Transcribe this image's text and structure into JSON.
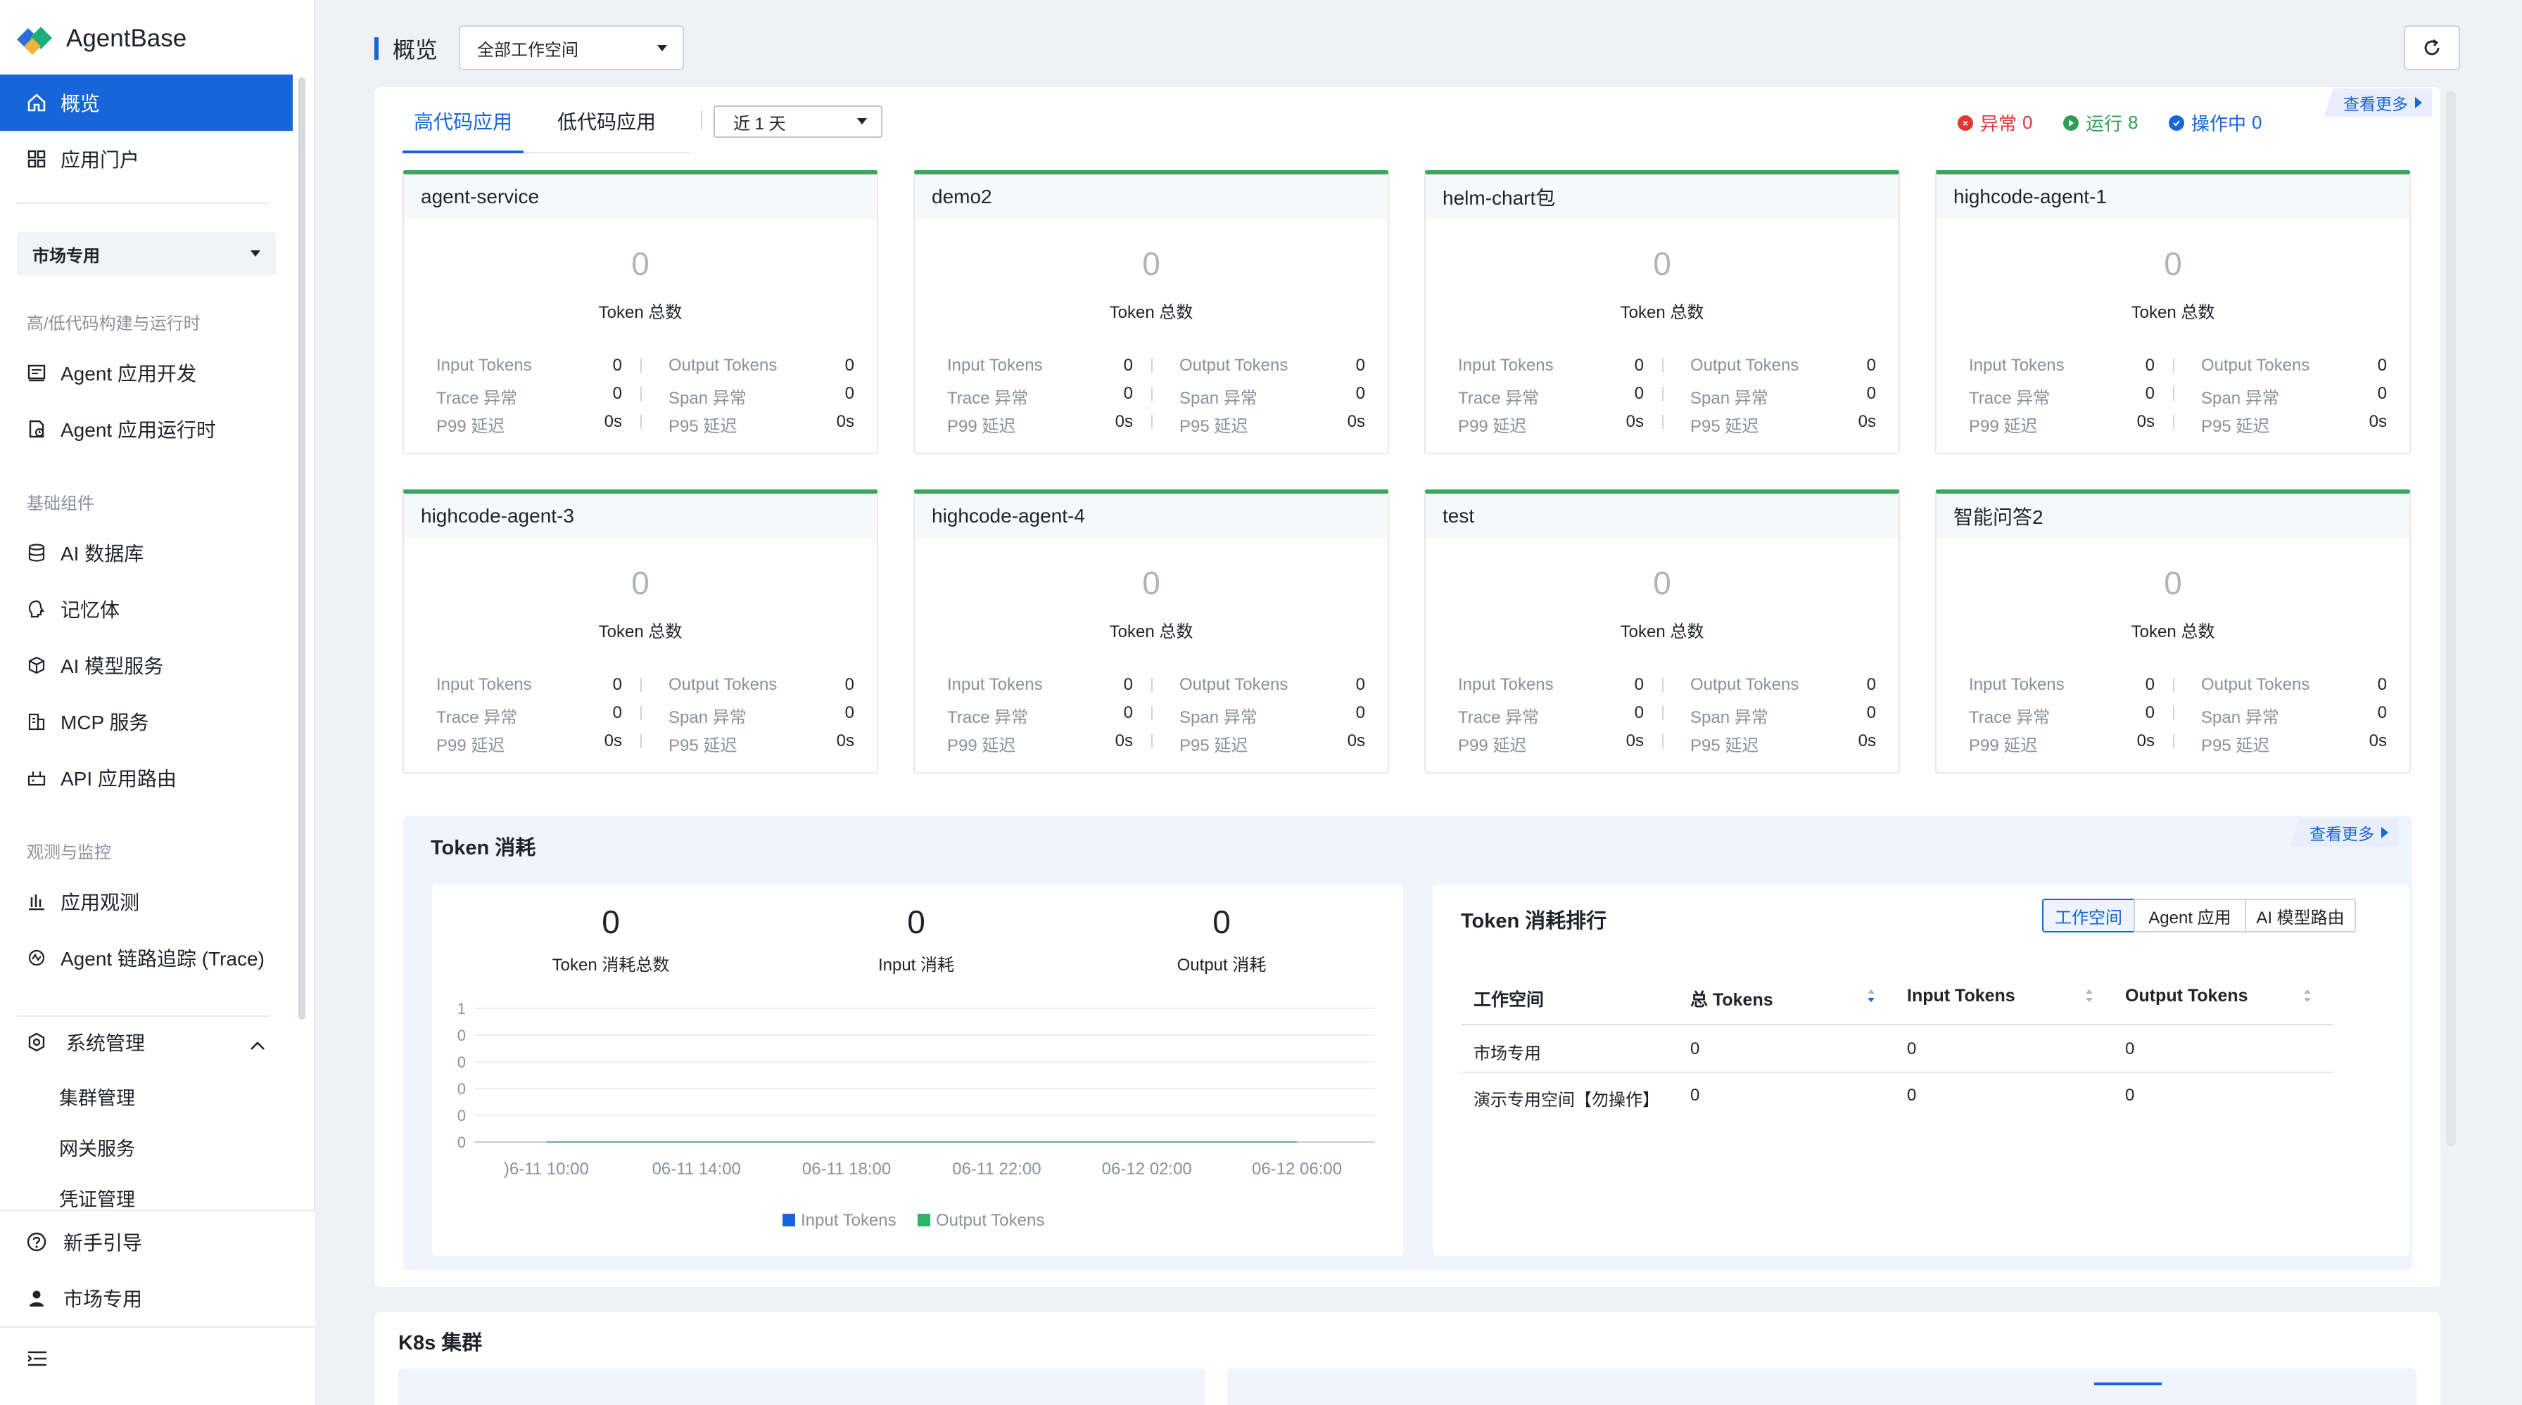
{
  "app": {
    "name": "AgentBase"
  },
  "sidebar": {
    "nav_top": [
      {
        "label": "概览",
        "icon": "home-icon"
      },
      {
        "label": "应用门户",
        "icon": "grid-icon"
      }
    ],
    "workspace_select": "市场专用",
    "section_build": "高/低代码构建与运行时",
    "nav_build": [
      {
        "label": "Agent 应用开发",
        "icon": "code-window-icon"
      },
      {
        "label": "Agent 应用运行时",
        "icon": "runtime-icon"
      }
    ],
    "section_base": "基础组件",
    "nav_base": [
      {
        "label": "AI 数据库",
        "icon": "database-icon"
      },
      {
        "label": "记忆体",
        "icon": "memory-icon"
      },
      {
        "label": "AI 模型服务",
        "icon": "cube-icon"
      },
      {
        "label": "MCP 服务",
        "icon": "building-icon"
      },
      {
        "label": "API 应用路由",
        "icon": "router-icon"
      }
    ],
    "section_observe": "观测与监控",
    "nav_observe": [
      {
        "label": "应用观测",
        "icon": "bar-chart-icon"
      },
      {
        "label": "Agent 链路追踪 (Trace)",
        "icon": "trace-icon"
      }
    ],
    "system": {
      "label": "系统管理",
      "icon": "settings-icon",
      "children": [
        "集群管理",
        "网关服务",
        "凭证管理"
      ]
    },
    "guide": {
      "label": "新手引导",
      "icon": "help-icon"
    },
    "user": {
      "label": "市场专用",
      "icon": "user-icon"
    }
  },
  "header": {
    "title": "概览",
    "workspace": "全部工作空间"
  },
  "tabs": [
    "高代码应用",
    "低代码应用"
  ],
  "range": "近 1 天",
  "status": {
    "error": {
      "label": "异常",
      "count": "0",
      "color": "#e03636"
    },
    "running": {
      "label": "运行",
      "count": "8",
      "color": "#2f9e55"
    },
    "operating": {
      "label": "操作中",
      "count": "0",
      "color": "#1765d8"
    }
  },
  "view_more": "查看更多",
  "card_labels": {
    "token_total": "Token 总数",
    "input_tokens": "Input Tokens",
    "output_tokens": "Output Tokens",
    "trace_error": "Trace 异常",
    "span_error": "Span 异常",
    "p99": "P99 延迟",
    "p95": "P95 延迟"
  },
  "apps": [
    {
      "name": "agent-service",
      "total": "0",
      "input": "0",
      "output": "0",
      "trace": "0",
      "span": "0",
      "p99": "0s",
      "p95": "0s"
    },
    {
      "name": "demo2",
      "total": "0",
      "input": "0",
      "output": "0",
      "trace": "0",
      "span": "0",
      "p99": "0s",
      "p95": "0s"
    },
    {
      "name": "helm-chart包",
      "total": "0",
      "input": "0",
      "output": "0",
      "trace": "0",
      "span": "0",
      "p99": "0s",
      "p95": "0s"
    },
    {
      "name": "highcode-agent-1",
      "total": "0",
      "input": "0",
      "output": "0",
      "trace": "0",
      "span": "0",
      "p99": "0s",
      "p95": "0s"
    },
    {
      "name": "highcode-agent-3",
      "total": "0",
      "input": "0",
      "output": "0",
      "trace": "0",
      "span": "0",
      "p99": "0s",
      "p95": "0s"
    },
    {
      "name": "highcode-agent-4",
      "total": "0",
      "input": "0",
      "output": "0",
      "trace": "0",
      "span": "0",
      "p99": "0s",
      "p95": "0s"
    },
    {
      "name": "test",
      "total": "0",
      "input": "0",
      "output": "0",
      "trace": "0",
      "span": "0",
      "p99": "0s",
      "p95": "0s"
    },
    {
      "name": "智能问答2",
      "total": "0",
      "input": "0",
      "output": "0",
      "trace": "0",
      "span": "0",
      "p99": "0s",
      "p95": "0s"
    }
  ],
  "token": {
    "title": "Token 消耗",
    "kpis": [
      {
        "value": "0",
        "label": "Token 消耗总数"
      },
      {
        "value": "0",
        "label": "Input 消耗"
      },
      {
        "value": "0",
        "label": "Output 消耗"
      }
    ]
  },
  "chart_data": {
    "type": "line",
    "x": [
      "06-11 10:00",
      "06-11 14:00",
      "06-11 18:00",
      "06-11 22:00",
      "06-12 02:00",
      "06-12 06:00"
    ],
    "x_display": [
      ")6-11 10:00",
      "06-11 14:00",
      "06-11 18:00",
      "06-11 22:00",
      "06-12 02:00",
      "06-12 06:00"
    ],
    "y_ticks": [
      "1",
      "0",
      "0",
      "0",
      "0",
      "0"
    ],
    "series": [
      {
        "name": "Input Tokens",
        "color": "#1765d8",
        "values": [
          0,
          0,
          0,
          0,
          0,
          0
        ]
      },
      {
        "name": "Output Tokens",
        "color": "#2fb36b",
        "values": [
          0,
          0,
          0,
          0,
          0,
          0
        ]
      }
    ],
    "ylim": [
      0,
      1
    ],
    "grid": true,
    "legend": "bottom"
  },
  "ranking": {
    "title": "Token 消耗排行",
    "segments": [
      "工作空间",
      "Agent 应用",
      "AI 模型路由"
    ],
    "columns": [
      "工作空间",
      "总 Tokens",
      "Input Tokens",
      "Output Tokens"
    ],
    "rows": [
      {
        "name": "市场专用",
        "total": "0",
        "input": "0",
        "output": "0"
      },
      {
        "name": "演示专用空间【勿操作】",
        "total": "0",
        "input": "0",
        "output": "0"
      }
    ]
  },
  "k8s": {
    "title": "K8s 集群"
  }
}
